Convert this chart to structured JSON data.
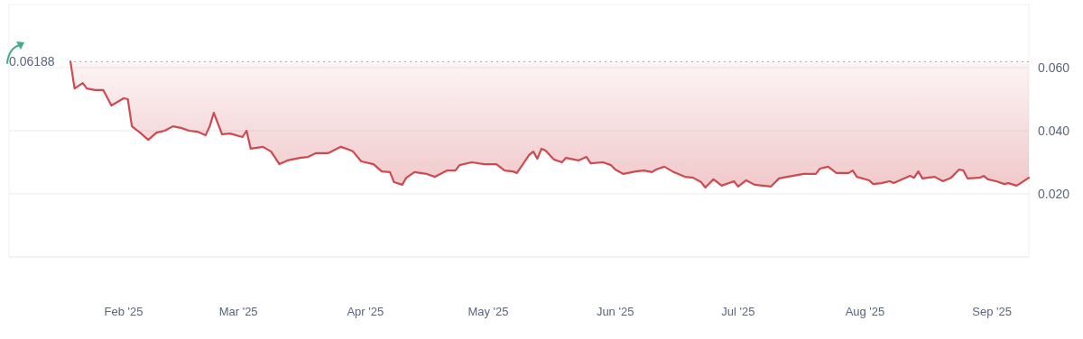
{
  "chart_data": {
    "type": "line",
    "x": [
      "2025-01-19",
      "2025-01-20",
      "2025-01-22",
      "2025-01-23",
      "2025-01-25",
      "2025-01-27",
      "2025-01-29",
      "2025-02-01",
      "2025-02-02",
      "2025-02-03",
      "2025-02-05",
      "2025-02-07",
      "2025-02-09",
      "2025-02-11",
      "2025-02-13",
      "2025-02-15",
      "2025-02-17",
      "2025-02-19",
      "2025-02-21",
      "2025-02-22",
      "2025-02-23",
      "2025-02-25",
      "2025-02-27",
      "2025-03-02",
      "2025-03-03",
      "2025-03-04",
      "2025-03-07",
      "2025-03-09",
      "2025-03-11",
      "2025-03-13",
      "2025-03-16",
      "2025-03-18",
      "2025-03-20",
      "2025-03-23",
      "2025-03-26",
      "2025-03-28",
      "2025-03-29",
      "2025-03-31",
      "2025-04-03",
      "2025-04-05",
      "2025-04-07",
      "2025-04-08",
      "2025-04-10",
      "2025-04-11",
      "2025-04-13",
      "2025-04-16",
      "2025-04-18",
      "2025-04-21",
      "2025-04-23",
      "2025-04-24",
      "2025-04-27",
      "2025-04-30",
      "2025-05-03",
      "2025-05-05",
      "2025-05-07",
      "2025-05-08",
      "2025-05-11",
      "2025-05-12",
      "2025-05-13",
      "2025-05-14",
      "2025-05-15",
      "2025-05-17",
      "2025-05-19",
      "2025-05-20",
      "2025-05-23",
      "2025-05-25",
      "2025-05-26",
      "2025-05-29",
      "2025-05-31",
      "2025-06-01",
      "2025-06-03",
      "2025-06-06",
      "2025-06-08",
      "2025-06-10",
      "2025-06-11",
      "2025-06-13",
      "2025-06-15",
      "2025-06-18",
      "2025-06-20",
      "2025-06-22",
      "2025-06-23",
      "2025-06-25",
      "2025-06-27",
      "2025-06-30",
      "2025-07-01",
      "2025-07-03",
      "2025-07-05",
      "2025-07-09",
      "2025-07-11",
      "2025-07-13",
      "2025-07-17",
      "2025-07-20",
      "2025-07-21",
      "2025-07-23",
      "2025-07-25",
      "2025-07-28",
      "2025-07-29",
      "2025-07-30",
      "2025-08-02",
      "2025-08-03",
      "2025-08-05",
      "2025-08-07",
      "2025-08-08",
      "2025-08-10",
      "2025-08-12",
      "2025-08-13",
      "2025-08-14",
      "2025-08-15",
      "2025-08-18",
      "2025-08-20",
      "2025-08-22",
      "2025-08-24",
      "2025-08-25",
      "2025-08-26",
      "2025-08-29",
      "2025-08-30",
      "2025-08-31",
      "2025-09-02",
      "2025-09-04",
      "2025-09-05",
      "2025-09-07",
      "2025-09-08",
      "2025-09-10"
    ],
    "series": [
      {
        "color": "#cf4a50",
        "values": [
          0.0619,
          0.0534,
          0.0551,
          0.0534,
          0.0529,
          0.0529,
          0.048,
          0.0503,
          0.05,
          0.0414,
          0.0394,
          0.0371,
          0.0394,
          0.04,
          0.0414,
          0.0409,
          0.04,
          0.0397,
          0.0386,
          0.0414,
          0.0457,
          0.0389,
          0.0391,
          0.038,
          0.04,
          0.0343,
          0.0349,
          0.0334,
          0.0294,
          0.0306,
          0.0314,
          0.0317,
          0.0329,
          0.0329,
          0.0349,
          0.034,
          0.0334,
          0.0303,
          0.0294,
          0.0271,
          0.0269,
          0.0237,
          0.0229,
          0.0251,
          0.0269,
          0.0263,
          0.0254,
          0.0274,
          0.0274,
          0.0291,
          0.03,
          0.0294,
          0.0294,
          0.0274,
          0.0271,
          0.0266,
          0.0323,
          0.0334,
          0.0311,
          0.0343,
          0.0337,
          0.0309,
          0.03,
          0.0314,
          0.0306,
          0.0317,
          0.0297,
          0.03,
          0.0291,
          0.0277,
          0.0263,
          0.0271,
          0.0274,
          0.0269,
          0.0277,
          0.0286,
          0.0271,
          0.0254,
          0.0251,
          0.0237,
          0.022,
          0.0246,
          0.0226,
          0.024,
          0.0223,
          0.0243,
          0.0229,
          0.0223,
          0.0249,
          0.0254,
          0.0263,
          0.0263,
          0.028,
          0.0286,
          0.0266,
          0.0266,
          0.0274,
          0.0254,
          0.0243,
          0.0231,
          0.0234,
          0.024,
          0.0234,
          0.0246,
          0.0257,
          0.0251,
          0.0271,
          0.0249,
          0.0254,
          0.024,
          0.0251,
          0.0277,
          0.0274,
          0.0249,
          0.0251,
          0.0257,
          0.0246,
          0.024,
          0.0231,
          0.0234,
          0.0226,
          0.0234,
          0.0251
        ]
      }
    ],
    "xlim": [
      "2025-01-04",
      "2025-09-10"
    ],
    "xticks": [
      {
        "value": "2025-02-01",
        "label": "Feb '25"
      },
      {
        "value": "2025-03-01",
        "label": "Mar '25"
      },
      {
        "value": "2025-04-01",
        "label": "Apr '25"
      },
      {
        "value": "2025-05-01",
        "label": "May '25"
      },
      {
        "value": "2025-06-01",
        "label": "Jun '25"
      },
      {
        "value": "2025-07-01",
        "label": "Jul '25"
      },
      {
        "value": "2025-08-01",
        "label": "Aug '25"
      },
      {
        "value": "2025-09-01",
        "label": "Sep '25"
      }
    ],
    "ylim": [
      0,
      0.08
    ],
    "yticks": [
      {
        "value": 0,
        "label": null
      },
      {
        "value": 0.02,
        "label": "0.020"
      },
      {
        "value": 0.04,
        "label": "0.040"
      },
      {
        "value": 0.06,
        "label": "0.060"
      }
    ],
    "grid": "y",
    "ref_lines": [
      {
        "axis": "y",
        "value": 0.06188,
        "label": "0.06188",
        "line_style": "dotted",
        "color": "#aaaaaa"
      }
    ]
  }
}
